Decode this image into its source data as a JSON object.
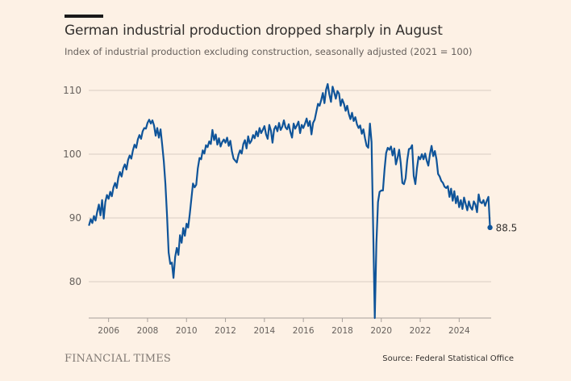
{
  "header": {
    "title": "German industrial production dropped sharply in August",
    "subtitle": "Index of industrial production excluding construction, seasonally adjusted (2021 = 100)"
  },
  "footer": {
    "brand": "FINANCIAL TIMES",
    "source": "Source: Federal Statistical Office"
  },
  "colors": {
    "background": "#fdf1e5",
    "line": "#0f5499",
    "grid": "#d9cdc3",
    "axis": "#a7a09b"
  },
  "chart_data": {
    "type": "line",
    "title": "German industrial production dropped sharply in August",
    "subtitle": "Index of industrial production excluding construction, seasonally adjusted (2021 = 100)",
    "xlabel": "",
    "ylabel": "",
    "xlim": [
      2005.0,
      2025.8
    ],
    "ylim": [
      74,
      112
    ],
    "grid": true,
    "legend": "none",
    "y_ticks": [
      80,
      90,
      100,
      110
    ],
    "x_ticks": [
      2006,
      2008,
      2010,
      2012,
      2014,
      2016,
      2018,
      2020,
      2022,
      2024
    ],
    "end_label": "88.5",
    "series": [
      {
        "name": "Industrial production index",
        "start": "2005-01",
        "frequency": "monthly",
        "values": [
          88.9,
          89.8,
          89.2,
          90.3,
          89.6,
          91.0,
          92.1,
          90.4,
          92.8,
          89.9,
          92.5,
          93.6,
          93.0,
          94.1,
          93.4,
          94.8,
          95.5,
          94.7,
          96.3,
          97.2,
          96.5,
          97.8,
          98.4,
          97.6,
          99.1,
          99.8,
          99.3,
          100.6,
          101.5,
          101.0,
          102.3,
          103.0,
          102.4,
          103.6,
          104.1,
          104.0,
          104.9,
          105.4,
          104.8,
          105.3,
          104.5,
          102.9,
          104.1,
          102.6,
          103.9,
          101.5,
          98.9,
          95.3,
          90.4,
          84.6,
          82.8,
          83.0,
          80.6,
          83.9,
          85.3,
          84.2,
          87.3,
          86.1,
          88.4,
          87.2,
          89.1,
          88.5,
          90.6,
          93.0,
          95.4,
          94.8,
          95.2,
          97.8,
          99.4,
          99.2,
          100.6,
          100.1,
          101.4,
          101.1,
          102.0,
          101.6,
          103.8,
          102.2,
          103.1,
          101.5,
          102.5,
          101.2,
          101.9,
          102.3,
          101.8,
          102.6,
          101.3,
          102.1,
          100.4,
          99.3,
          99.0,
          98.7,
          99.9,
          100.6,
          100.1,
          101.6,
          102.2,
          100.9,
          102.8,
          101.7,
          102.1,
          103.0,
          102.5,
          103.6,
          102.8,
          104.1,
          103.3,
          103.8,
          104.4,
          103.1,
          102.4,
          104.6,
          103.7,
          101.8,
          103.9,
          104.4,
          103.6,
          104.9,
          103.8,
          104.3,
          105.3,
          104.2,
          103.9,
          104.7,
          103.5,
          102.6,
          104.8,
          104.0,
          104.5,
          105.1,
          103.3,
          104.6,
          104.1,
          104.8,
          105.6,
          104.4,
          105.2,
          103.1,
          104.9,
          105.4,
          106.7,
          107.9,
          107.6,
          108.5,
          109.6,
          108.0,
          110.1,
          111.0,
          109.4,
          108.2,
          110.6,
          109.7,
          108.7,
          109.9,
          109.5,
          107.6,
          108.6,
          107.9,
          106.8,
          107.6,
          106.3,
          105.5,
          106.5,
          105.2,
          105.8,
          104.7,
          104.1,
          104.5,
          103.2,
          103.9,
          102.5,
          101.3,
          101.0,
          104.8,
          101.9,
          88.4,
          74.3,
          86.0,
          92.5,
          94.1,
          94.3,
          94.3,
          97.6,
          100.2,
          101.0,
          100.7,
          101.2,
          99.8,
          100.9,
          98.4,
          99.4,
          100.7,
          98.6,
          95.5,
          95.3,
          96.2,
          99.0,
          100.8,
          100.9,
          101.4,
          96.6,
          95.3,
          97.8,
          99.6,
          99.2,
          100.0,
          99.2,
          100.1,
          99.0,
          98.2,
          100.0,
          101.3,
          99.7,
          100.5,
          99.2,
          96.9,
          96.5,
          95.8,
          95.5,
          94.9,
          94.7,
          95.0,
          93.3,
          94.6,
          92.7,
          94.2,
          92.3,
          93.4,
          91.7,
          92.8,
          91.4,
          93.2,
          92.2,
          91.2,
          92.6,
          91.7,
          91.3,
          92.6,
          92.1,
          90.9,
          93.7,
          92.5,
          92.3,
          92.8,
          91.9,
          92.7,
          93.3,
          88.5
        ]
      }
    ]
  }
}
